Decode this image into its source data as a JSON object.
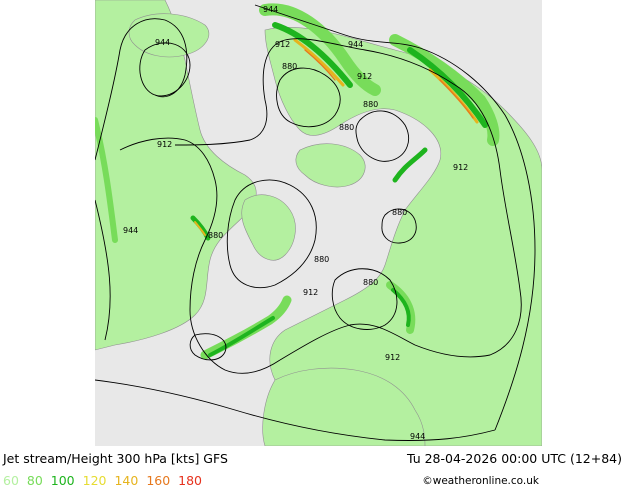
{
  "title": "Jet stream/Height 300 hPa [kts] GFS",
  "valid_time": "Tu 28-04-2026 00:00 UTC (12+84)",
  "credit": "©weatheronline.co.uk",
  "legend": [
    {
      "label": "60",
      "color": "#b4f0a0"
    },
    {
      "label": "80",
      "color": "#78dc5a"
    },
    {
      "label": "100",
      "color": "#1eb41e"
    },
    {
      "label": "120",
      "color": "#e6dc32"
    },
    {
      "label": "140",
      "color": "#e6b41e"
    },
    {
      "label": "160",
      "color": "#e6781e"
    },
    {
      "label": "180",
      "color": "#e6321e"
    }
  ],
  "colors": {
    "ocean": "#e8e8e8",
    "land": "#b4f0a0",
    "coastline": "#909090",
    "contour": "#000000"
  },
  "contour_labels": [
    {
      "text": "944"
    },
    {
      "text": "944"
    },
    {
      "text": "912"
    },
    {
      "text": "944"
    },
    {
      "text": "880"
    },
    {
      "text": "912"
    },
    {
      "text": "880"
    },
    {
      "text": "880"
    },
    {
      "text": "912"
    },
    {
      "text": "912"
    },
    {
      "text": "944"
    },
    {
      "text": "880"
    },
    {
      "text": "880"
    },
    {
      "text": "880"
    },
    {
      "text": "880"
    },
    {
      "text": "912"
    },
    {
      "text": "912"
    },
    {
      "text": "944"
    }
  ]
}
